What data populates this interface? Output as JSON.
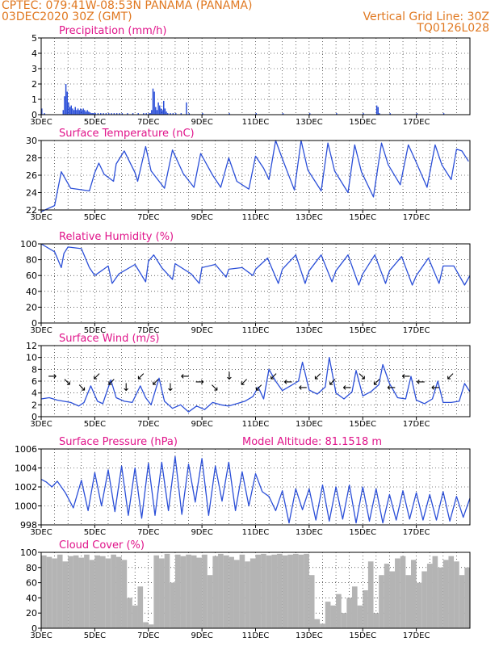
{
  "header": {
    "line1": "CPTEC:   079:41W-08:53N   PANAMA (PANAMA)",
    "line2": "03DEC2020 30Z (GMT)",
    "grid_line": "Vertical Grid Line: 30Z",
    "code": "TQ0126L028"
  },
  "colors": {
    "accent": "#e07820",
    "panel_title": "#e0148a",
    "series": "#2b4fd8",
    "cloud": "#b4b4b4",
    "axis": "#000000"
  },
  "x_ticks": [
    "3DEC",
    "5DEC",
    "7DEC",
    "9DEC",
    "11DEC",
    "13DEC",
    "15DEC",
    "17DEC"
  ],
  "chart_data": [
    {
      "type": "bar",
      "title": "Precipitation (mm/h)",
      "xlim": [
        3,
        19
      ],
      "ylim": [
        0,
        5
      ],
      "yticks": [
        0,
        1,
        2,
        3,
        4,
        5
      ],
      "grid": true,
      "x": [
        3.0,
        3.1,
        3.8,
        3.85,
        3.9,
        3.95,
        4.0,
        4.05,
        4.1,
        4.15,
        4.2,
        4.25,
        4.3,
        4.35,
        4.4,
        4.45,
        4.5,
        4.55,
        4.6,
        4.65,
        4.7,
        4.75,
        4.8,
        4.85,
        4.9,
        4.95,
        5.0,
        5.1,
        5.2,
        5.3,
        5.4,
        5.5,
        5.6,
        5.7,
        5.8,
        5.9,
        6.0,
        6.2,
        6.4,
        6.6,
        6.8,
        6.9,
        7.0,
        7.05,
        7.1,
        7.15,
        7.2,
        7.25,
        7.3,
        7.35,
        7.4,
        7.45,
        7.5,
        7.55,
        7.6,
        7.65,
        7.7,
        7.8,
        7.9,
        8.0,
        8.2,
        8.4,
        8.5,
        9.0,
        10.0,
        11.0,
        12.0,
        13.0,
        14.0,
        15.0,
        15.5,
        15.55,
        15.6,
        16.0,
        17.0,
        18.0
      ],
      "values": [
        0.4,
        0.1,
        0.3,
        1.2,
        2.0,
        1.5,
        0.8,
        0.5,
        0.6,
        0.4,
        0.3,
        0.5,
        0.3,
        0.4,
        0.3,
        0.4,
        0.3,
        0.4,
        0.3,
        0.2,
        0.3,
        0.2,
        0.15,
        0.1,
        0.1,
        0.1,
        0.1,
        0.1,
        0.1,
        0.1,
        0.1,
        0.1,
        0.1,
        0.1,
        0.1,
        0.1,
        0.1,
        0.1,
        0.1,
        0.1,
        0.1,
        0.1,
        0.1,
        0.1,
        0.3,
        1.7,
        1.5,
        0.5,
        0.3,
        0.8,
        0.6,
        0.4,
        0.3,
        0.9,
        0.4,
        0.2,
        0.1,
        0.1,
        0.1,
        0.1,
        0.1,
        0.8,
        0.1,
        0.1,
        0.1,
        0.1,
        0.1,
        0.1,
        0.1,
        0.1,
        0.6,
        0.5,
        0.1,
        0.1,
        0.1,
        0.1
      ]
    },
    {
      "type": "line",
      "title": "Surface Temperature (nC)",
      "xlim": [
        3,
        19
      ],
      "ylim": [
        22,
        30
      ],
      "yticks": [
        22,
        24,
        26,
        28,
        30
      ],
      "grid": true,
      "x": [
        3.0,
        3.5,
        3.75,
        4.1,
        4.8,
        5.0,
        5.15,
        5.35,
        5.7,
        5.8,
        6.1,
        6.5,
        6.6,
        6.9,
        7.1,
        7.6,
        7.9,
        8.3,
        8.7,
        8.95,
        9.4,
        9.7,
        10.0,
        10.3,
        10.75,
        11.0,
        11.3,
        11.5,
        11.75,
        12.0,
        12.45,
        12.7,
        12.95,
        13.45,
        13.7,
        13.95,
        14.45,
        14.7,
        14.95,
        15.4,
        15.7,
        15.95,
        16.4,
        16.7,
        16.95,
        17.4,
        17.7,
        17.95,
        18.3,
        18.5,
        18.7,
        18.95
      ],
      "series": [
        {
          "values": [
            21.8,
            22.5,
            26.4,
            24.5,
            24.2,
            26.3,
            27.4,
            26.1,
            25.3,
            27.3,
            28.8,
            26.3,
            25.3,
            29.3,
            26.5,
            24.5,
            28.9,
            26.2,
            24.6,
            28.5,
            26.0,
            24.6,
            28.0,
            25.3,
            24.4,
            28.2,
            26.8,
            25.5,
            30.0,
            27.9,
            24.3,
            30.0,
            26.6,
            24.2,
            29.7,
            26.5,
            24.0,
            29.5,
            26.4,
            23.5,
            29.7,
            27.2,
            24.9,
            29.5,
            27.8,
            24.6,
            29.5,
            27.2,
            25.5,
            29.0,
            28.8,
            27.6
          ]
        }
      ]
    },
    {
      "type": "line",
      "title": "Relative Humidity (%)",
      "xlim": [
        3,
        19
      ],
      "ylim": [
        0,
        100
      ],
      "yticks": [
        0,
        20,
        40,
        60,
        80,
        100
      ],
      "grid": true,
      "x": [
        3.0,
        3.5,
        3.75,
        3.85,
        4.0,
        4.5,
        4.8,
        5.0,
        5.5,
        5.65,
        5.9,
        6.5,
        6.9,
        7.0,
        7.2,
        7.5,
        7.9,
        8.0,
        8.6,
        8.9,
        9.0,
        9.5,
        9.9,
        10.0,
        10.5,
        10.9,
        11.0,
        11.45,
        11.85,
        12.0,
        12.5,
        12.85,
        13.0,
        13.45,
        13.85,
        14.0,
        14.45,
        14.85,
        15.0,
        15.45,
        15.85,
        16.0,
        16.45,
        16.85,
        17.0,
        17.45,
        17.85,
        18.0,
        18.4,
        18.8,
        19.0
      ],
      "series": [
        {
          "values": [
            100,
            90,
            70,
            88,
            96,
            94,
            70,
            60,
            72,
            50,
            62,
            74,
            52,
            78,
            86,
            70,
            55,
            75,
            62,
            50,
            70,
            74,
            58,
            68,
            70,
            60,
            68,
            82,
            50,
            68,
            86,
            50,
            66,
            86,
            52,
            66,
            86,
            48,
            62,
            86,
            50,
            66,
            84,
            48,
            60,
            82,
            50,
            72,
            72,
            48,
            60
          ]
        }
      ]
    },
    {
      "type": "line",
      "title": "Surface Wind (m/s)",
      "xlim": [
        3,
        19
      ],
      "ylim": [
        0,
        12
      ],
      "yticks": [
        0,
        2,
        4,
        6,
        8,
        10,
        12
      ],
      "grid": true,
      "x": [
        3.0,
        3.3,
        3.6,
        4.1,
        4.4,
        4.6,
        4.85,
        5.1,
        5.3,
        5.6,
        5.8,
        6.1,
        6.4,
        6.7,
        6.9,
        7.1,
        7.4,
        7.6,
        7.9,
        8.2,
        8.5,
        8.8,
        9.1,
        9.4,
        9.7,
        10.0,
        10.3,
        10.6,
        10.9,
        11.1,
        11.3,
        11.5,
        11.75,
        12.0,
        12.3,
        12.6,
        12.75,
        13.0,
        13.3,
        13.6,
        13.75,
        14.0,
        14.3,
        14.6,
        14.75,
        15.0,
        15.3,
        15.6,
        15.75,
        16.0,
        16.3,
        16.6,
        16.8,
        17.0,
        17.3,
        17.6,
        17.8,
        18.0,
        18.3,
        18.6,
        18.8,
        19.0
      ],
      "series": [
        {
          "values": [
            3.0,
            3.2,
            2.8,
            2.4,
            1.8,
            2.4,
            5.2,
            2.6,
            2.2,
            6.2,
            3.2,
            2.6,
            2.4,
            5.2,
            3.2,
            2.0,
            6.5,
            2.6,
            1.4,
            2.0,
            0.8,
            1.8,
            1.2,
            2.4,
            2.0,
            1.8,
            2.2,
            2.6,
            3.4,
            5.0,
            3.0,
            8.0,
            6.0,
            4.4,
            5.2,
            6.0,
            9.2,
            4.5,
            3.8,
            5.0,
            10.0,
            4.0,
            3.0,
            4.2,
            7.8,
            3.5,
            4.2,
            5.4,
            8.8,
            5.6,
            3.2,
            3.0,
            6.8,
            2.8,
            2.2,
            3.0,
            6.0,
            2.4,
            2.4,
            2.6,
            5.6,
            4.2
          ]
        }
      ],
      "arrows": [
        "→",
        "↘",
        "↘",
        "↙",
        "↙",
        "↓",
        "↙",
        "↙",
        "↓",
        "←",
        "→",
        "↘",
        "↓",
        "↙",
        "↙",
        "↙",
        "←",
        "←",
        "↙",
        "↙",
        "←",
        "↘",
        "↙",
        "←",
        "←",
        "←",
        "←",
        "↙"
      ]
    },
    {
      "type": "line",
      "title": "Surface Pressure (hPa)",
      "annotation": "Model Altitude: 81.1518 m",
      "xlim": [
        3,
        19
      ],
      "ylim": [
        998,
        1006
      ],
      "yticks": [
        998,
        1000,
        1002,
        1004,
        1006
      ],
      "grid": true,
      "x": [
        3.0,
        3.2,
        3.4,
        3.6,
        3.9,
        4.2,
        4.5,
        4.75,
        5.0,
        5.25,
        5.5,
        5.75,
        6.0,
        6.25,
        6.5,
        6.75,
        7.0,
        7.25,
        7.5,
        7.75,
        8.0,
        8.25,
        8.5,
        8.75,
        9.0,
        9.25,
        9.5,
        9.75,
        10.0,
        10.25,
        10.5,
        10.75,
        11.0,
        11.25,
        11.5,
        11.75,
        12.0,
        12.25,
        12.5,
        12.75,
        13.0,
        13.25,
        13.5,
        13.75,
        14.0,
        14.25,
        14.5,
        14.75,
        15.0,
        15.25,
        15.5,
        15.75,
        16.0,
        16.25,
        16.5,
        16.75,
        17.0,
        17.25,
        17.5,
        17.75,
        18.0,
        18.25,
        18.5,
        18.75,
        19.0
      ],
      "series": [
        {
          "values": [
            1002.8,
            1002.5,
            1002.0,
            1002.6,
            1001.4,
            999.8,
            1002.7,
            999.5,
            1003.5,
            1000.0,
            1003.8,
            999.4,
            1004.2,
            999.0,
            1004.0,
            998.7,
            1004.5,
            999.0,
            1004.6,
            999.5,
            1005.2,
            999.1,
            1004.4,
            1000.4,
            1005.0,
            999.0,
            1004.2,
            1000.5,
            1004.6,
            999.5,
            1003.6,
            1000.0,
            1003.4,
            1001.5,
            1001.0,
            999.5,
            1001.6,
            998.2,
            1001.8,
            999.6,
            1001.8,
            998.5,
            1002.2,
            998.4,
            1002.0,
            998.6,
            1002.2,
            998.2,
            1002.0,
            998.4,
            1001.8,
            998.2,
            1001.2,
            998.5,
            1001.6,
            998.6,
            1001.4,
            998.5,
            1001.2,
            998.5,
            1001.5,
            998.4,
            1001.0,
            998.8,
            1000.8
          ]
        }
      ]
    },
    {
      "type": "area",
      "title": "Cloud Cover (%)",
      "xlim": [
        3,
        19
      ],
      "ylim": [
        0,
        100
      ],
      "yticks": [
        0,
        20,
        40,
        60,
        80,
        100
      ],
      "grid": true,
      "x": [
        3.0,
        3.2,
        3.4,
        3.6,
        3.8,
        4.0,
        4.2,
        4.4,
        4.6,
        4.8,
        5.0,
        5.2,
        5.4,
        5.6,
        5.8,
        6.0,
        6.2,
        6.4,
        6.6,
        6.8,
        7.0,
        7.2,
        7.4,
        7.6,
        7.8,
        8.0,
        8.2,
        8.4,
        8.6,
        8.8,
        9.0,
        9.2,
        9.4,
        9.6,
        9.8,
        10.0,
        10.2,
        10.4,
        10.6,
        10.8,
        11.0,
        11.2,
        11.4,
        11.6,
        11.8,
        12.0,
        12.2,
        12.4,
        12.6,
        12.8,
        13.0,
        13.2,
        13.4,
        13.6,
        13.8,
        14.0,
        14.2,
        14.4,
        14.6,
        14.8,
        15.0,
        15.2,
        15.4,
        15.6,
        15.8,
        16.0,
        16.2,
        16.4,
        16.6,
        16.8,
        17.0,
        17.2,
        17.4,
        17.6,
        17.8,
        18.0,
        18.2,
        18.4,
        18.6,
        18.8,
        19.0
      ],
      "series": [
        {
          "values": [
            96,
            94,
            92,
            97,
            88,
            95,
            96,
            93,
            97,
            90,
            96,
            95,
            92,
            97,
            94,
            90,
            40,
            30,
            55,
            8,
            5,
            96,
            92,
            98,
            60,
            97,
            95,
            97,
            96,
            93,
            97,
            70,
            95,
            98,
            96,
            94,
            90,
            97,
            88,
            92,
            97,
            98,
            96,
            97,
            98,
            96,
            97,
            98,
            97,
            98,
            70,
            12,
            6,
            35,
            30,
            45,
            20,
            40,
            55,
            30,
            50,
            88,
            20,
            70,
            85,
            75,
            92,
            95,
            70,
            90,
            60,
            75,
            85,
            95,
            80,
            90,
            95,
            88,
            70,
            80,
            75
          ]
        }
      ]
    }
  ]
}
